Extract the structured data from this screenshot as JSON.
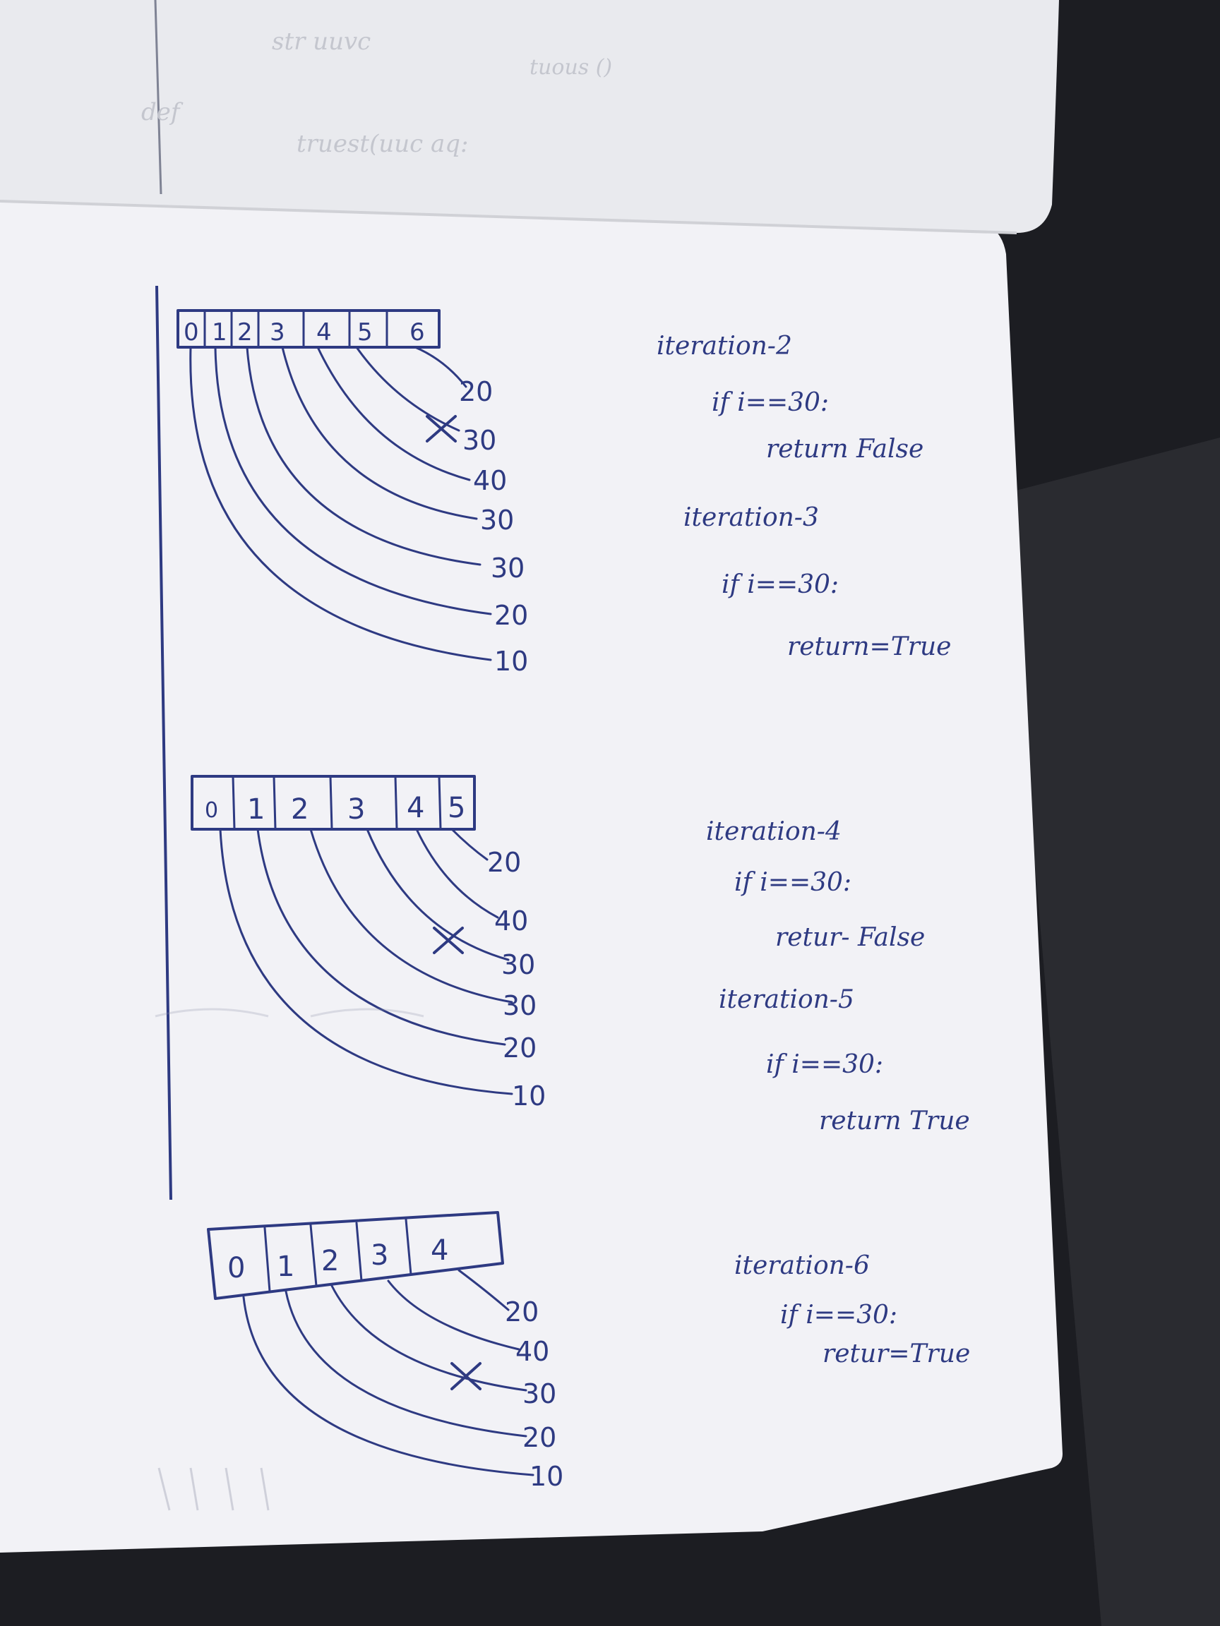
{
  "page_top_ghost": [
    "str uuvc",
    "tuous ()",
    "def",
    "truest(uuc aq:"
  ],
  "arrays": [
    {
      "indices": [
        "0",
        "1",
        "2",
        "3",
        "4",
        "5",
        "6"
      ],
      "values": [
        "20",
        "30",
        "40",
        "30",
        "30",
        "20",
        "10"
      ],
      "crossed_value": "30"
    },
    {
      "indices": [
        "0",
        "1",
        "2",
        "3",
        "4",
        "5"
      ],
      "values": [
        "20",
        "40",
        "30",
        "30",
        "20",
        "10"
      ],
      "crossed_value": "30"
    },
    {
      "indices": [
        "0",
        "1",
        "2",
        "3",
        "4"
      ],
      "values": [
        "20",
        "40",
        "30",
        "20",
        "10"
      ],
      "crossed_value": "30"
    }
  ],
  "notes": [
    {
      "iterations": [
        {
          "title": "iteration-2",
          "condition": "if i==30:",
          "result": "return False"
        },
        {
          "title": "iteration-3",
          "condition": "if i==30:",
          "result": "return=True"
        }
      ]
    },
    {
      "iterations": [
        {
          "title": "iteration-4",
          "condition": "if i==30:",
          "result": "retur- False"
        },
        {
          "title": "iteration-5",
          "condition": "if i==30:",
          "result": "return True"
        }
      ]
    },
    {
      "iterations": [
        {
          "title": "iteration-6",
          "condition": "if i==30:",
          "result": "retur=True"
        }
      ]
    }
  ],
  "colors": {
    "ink": "#2e3a82",
    "paper": "#f5f5f7",
    "background": "#1c1d22"
  }
}
